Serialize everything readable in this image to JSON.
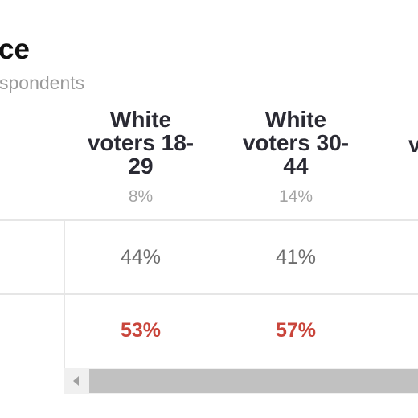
{
  "header": {
    "title": "ce",
    "subtitle": "spondents"
  },
  "columns": [
    {
      "label": "White voters 18-29",
      "share": "8%"
    },
    {
      "label": "White voters 30-44",
      "share": "14%"
    },
    {
      "label_partial": "v"
    }
  ],
  "rows": [
    {
      "values": [
        "44%",
        "41%"
      ]
    },
    {
      "values": [
        "53%",
        "57%"
      ],
      "highlight_color": "#c9453b"
    }
  ],
  "scrollbar": {
    "orientation": "horizontal",
    "left_arrow_icon": "triangle-left-icon"
  }
}
